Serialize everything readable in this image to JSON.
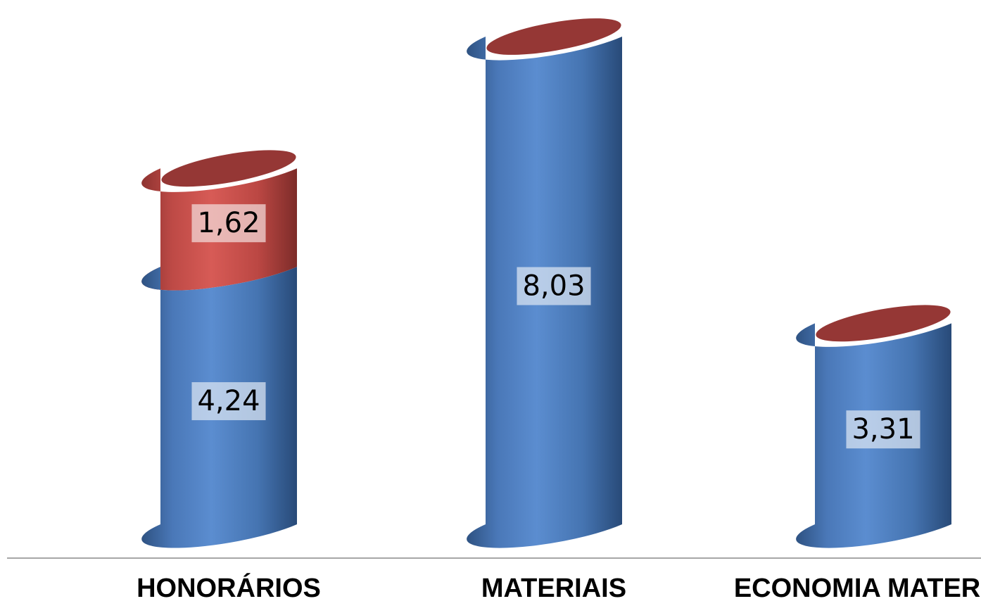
{
  "chart_data": {
    "type": "bar",
    "style": "stacked-cylinder-3d",
    "categories": [
      "HONORÁRIOS",
      "MATERIAIS",
      "ECONOMIA MATERIAIS"
    ],
    "series": [
      {
        "values": [
          4.24,
          8.03,
          3.31
        ],
        "labels": [
          "4,24",
          "8,03",
          "3,31"
        ],
        "color": "#4F81BD"
      },
      {
        "values": [
          1.62,
          0,
          0
        ],
        "labels": [
          "1,62",
          "",
          ""
        ],
        "color": "#C0504D"
      }
    ],
    "title": "",
    "xlabel": "",
    "ylabel": "",
    "ylim": [
      0,
      9
    ],
    "grid": false,
    "legend": "none",
    "axis_line_color": "#A6A6A6",
    "cap_color": "#953735"
  }
}
